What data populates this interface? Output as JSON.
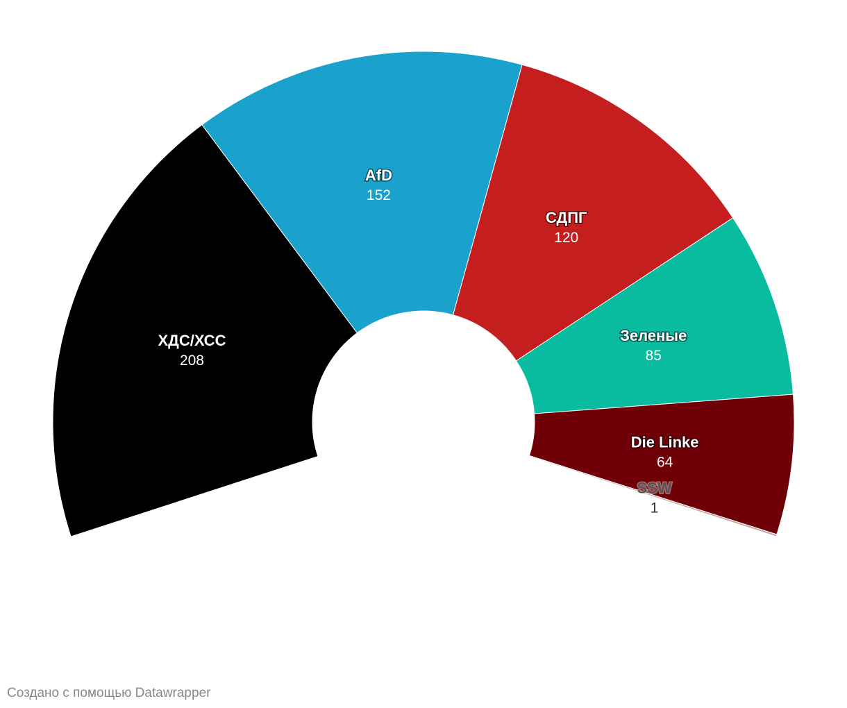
{
  "chart_data": {
    "type": "parliament",
    "categories": [
      "ХДС/ХСС",
      "AfD",
      "СДПГ",
      "Зеленые",
      "Die Linke",
      "SSW"
    ],
    "values": [
      208,
      152,
      120,
      85,
      64,
      1
    ],
    "colors": [
      "#000000",
      "#1aa1cc",
      "#c41e1e",
      "#0abc9f",
      "#700008",
      "#c9a6a6"
    ]
  },
  "footer": "Создано с помощью Datawrapper"
}
